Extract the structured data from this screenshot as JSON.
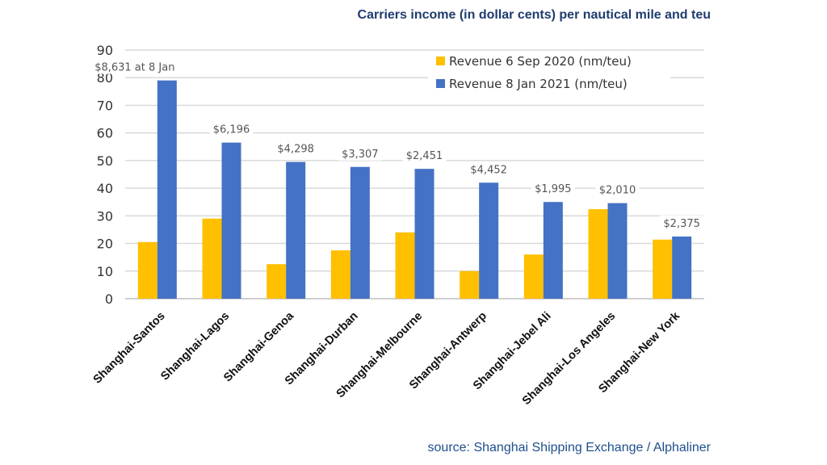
{
  "chart_data": {
    "type": "bar",
    "title": "Carriers income (in dollar cents) per nautical mile and teu",
    "source": "source: Shanghai Shipping Exchange / Alphaliner",
    "categories": [
      "Shanghai-Santos",
      "Shanghai-Lagos",
      "Shanghai-Genoa",
      "Shanghai-Durban",
      "Shanghai-Melbourne",
      "Shanghai-Antwerp",
      "Shanghai-Jebel Ali",
      "Shanghai-Los Angeles",
      "Shanghai-New York"
    ],
    "series": [
      {
        "name": "Revenue 6 Sep 2020 (nm/teu)",
        "color": "#ffc000",
        "values": [
          20.5,
          29,
          12.5,
          17.5,
          24,
          10,
          16,
          32.4,
          21.4
        ]
      },
      {
        "name": "Revenue 8 Jan 2021 (nm/teu)",
        "color": "#4472c4",
        "values": [
          79,
          56.5,
          49.5,
          47.7,
          47,
          42,
          35,
          34.6,
          22.5
        ]
      }
    ],
    "data_labels": [
      "$8,631 at 8 Jan",
      "$6,196",
      "$4,298",
      "$3,307",
      "$2,451",
      "$4,452",
      "$1,995",
      "$2,010",
      "$2,375"
    ],
    "ylim": [
      0,
      90
    ],
    "yticks": [
      0,
      10,
      20,
      30,
      40,
      50,
      60,
      70,
      80,
      90
    ],
    "grid": true,
    "legend_position": "top-right"
  }
}
